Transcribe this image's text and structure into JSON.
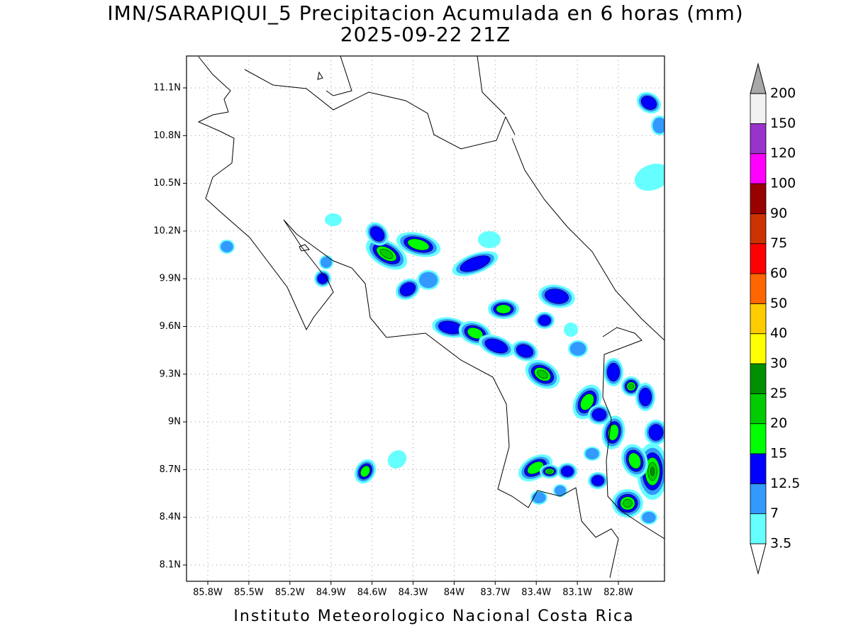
{
  "header": {
    "title": "IMN/SARAPIQUI_5 Precipitacion Acumulada en 6 horas (mm)",
    "subtitle": "2025-09-22 21Z"
  },
  "map": {
    "lon_labels": [
      "85.8W",
      "85.5W",
      "85.2W",
      "84.9W",
      "84.6W",
      "84.3W",
      "84W",
      "83.7W",
      "83.4W",
      "83.1W",
      "82.8W"
    ],
    "lat_labels": [
      "11.1N",
      "10.8N",
      "10.5N",
      "10.2N",
      "9.9N",
      "9.6N",
      "9.3N",
      "9N",
      "8.7N",
      "8.4N",
      "8.1N"
    ]
  },
  "colorbar": {
    "labels": [
      "3.5",
      "7",
      "12.5",
      "15",
      "20",
      "25",
      "30",
      "40",
      "50",
      "60",
      "75",
      "90",
      "100",
      "120",
      "150",
      "200"
    ],
    "colors": [
      "#66ffff",
      "#3399ff",
      "#0000ff",
      "#00ff00",
      "#00cc00",
      "#008f00",
      "#ffff00",
      "#ffcc00",
      "#ff6600",
      "#ff0000",
      "#cc3300",
      "#990000",
      "#ff00ff",
      "#9933cc",
      "#f2f2f2"
    ],
    "below_color": "#ffffff",
    "above_color": "#a8a8a8"
  },
  "footer": "Instituto Meteorologico Nacional Costa Rica"
}
